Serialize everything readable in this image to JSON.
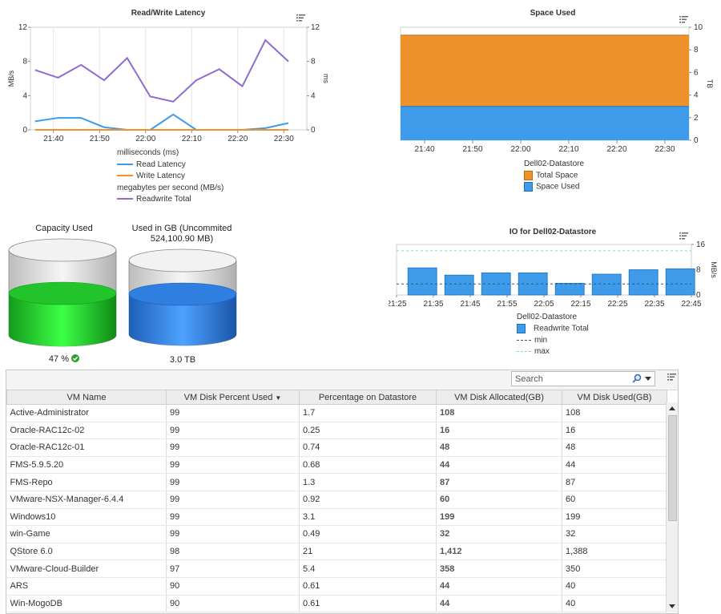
{
  "charts": {
    "rw_latency": {
      "title": "Read/Write Latency",
      "left_axis_label": "MB/s",
      "right_axis_label": "ms",
      "y_ticks": [
        "12",
        "8",
        "4",
        "0"
      ],
      "x_ticks": [
        "21:40",
        "21:50",
        "22:00",
        "22:10",
        "22:20",
        "22:30"
      ],
      "legend": {
        "group1": "milliseconds (ms)",
        "read": "Read Latency",
        "write": "Write Latency",
        "group2": "megabytes per second (MB/s)",
        "total": "Readwrite Total"
      }
    },
    "space_used": {
      "title": "Space Used",
      "right_axis_label": "TB",
      "y_ticks": [
        "10",
        "8",
        "6",
        "4",
        "2",
        "0"
      ],
      "x_ticks": [
        "21:40",
        "21:50",
        "22:00",
        "22:10",
        "22:20",
        "22:30"
      ],
      "legend": {
        "header": "Dell02-Datastore",
        "total": "Total Space",
        "used": "Space Used"
      }
    },
    "io": {
      "title": "IO for Dell02-Datastore",
      "right_axis_label": "MB/s",
      "y_ticks": [
        "16",
        "8",
        "0"
      ],
      "x_ticks": [
        "21:25",
        "21:35",
        "21:45",
        "21:55",
        "22:05",
        "22:15",
        "22:25",
        "22:35",
        "22:45"
      ],
      "legend": {
        "header": "Dell02-Datastore",
        "total": "Readwrite Total",
        "min": "min",
        "max": "max"
      }
    }
  },
  "chart_data": [
    {
      "type": "line",
      "title": "Read/Write Latency",
      "ylabel": "MB/s",
      "y2label": "ms",
      "ylim": [
        0,
        12
      ],
      "x": [
        "21:36",
        "21:41",
        "21:46",
        "21:51",
        "21:56",
        "22:01",
        "22:06",
        "22:11",
        "22:16",
        "22:21",
        "22:26",
        "22:31"
      ],
      "series": [
        {
          "name": "Read Latency",
          "values": [
            1.0,
            1.4,
            1.4,
            0.3,
            0.0,
            0.0,
            1.8,
            0.0,
            0.0,
            0.0,
            0.2,
            0.8
          ],
          "color": "#3d9be9"
        },
        {
          "name": "Write Latency",
          "values": [
            0,
            0,
            0,
            0,
            0,
            0,
            0,
            0,
            0,
            0,
            0,
            0
          ],
          "color": "#f0922b"
        },
        {
          "name": "Readwrite Total",
          "values": [
            7.0,
            6.1,
            7.6,
            5.8,
            8.4,
            3.9,
            3.3,
            5.8,
            7.1,
            5.1,
            10.5,
            8.0
          ],
          "color": "#8f6bd1"
        }
      ]
    },
    {
      "type": "area",
      "title": "Space Used",
      "ylabel": "TB",
      "ylim": [
        0,
        10
      ],
      "x_range": [
        "21:35",
        "22:35"
      ],
      "series": [
        {
          "name": "Total Space",
          "value": 9.3,
          "color": "#f0922b"
        },
        {
          "name": "Space Used",
          "value": 3.0,
          "color": "#3d9be9"
        }
      ]
    },
    {
      "type": "bar",
      "title": "IO for Dell02-Datastore",
      "ylabel": "MB/s",
      "ylim": [
        0,
        16
      ],
      "categories": [
        "21:27",
        "21:37",
        "21:47",
        "21:57",
        "22:07",
        "22:17",
        "22:27",
        "22:37"
      ],
      "series": [
        {
          "name": "Readwrite Total",
          "values": [
            8.6,
            6.3,
            7.0,
            7.0,
            3.7,
            6.6,
            8.0,
            8.3
          ],
          "color": "#3d9be9"
        }
      ],
      "reference_lines": {
        "min": 3.5,
        "max": 14.0
      }
    }
  ],
  "capacity": {
    "capacity_title": "Capacity Used",
    "capacity_value": "47 %",
    "capacity_percent": 47,
    "used_title_line1": "Used in GB (Uncommited",
    "used_title_line2": "524,100.90 MB)",
    "used_value": "3.0 TB",
    "colors": {
      "capacity": "#21c42a",
      "used": "#2f7fe0"
    }
  },
  "grid": {
    "search_placeholder": "Search",
    "columns": [
      "VM Name",
      "VM Disk Percent Used",
      "Percentage on Datastore",
      "VM Disk Allocated(GB)",
      "VM Disk Used(GB)"
    ],
    "sort_indicator": "▼",
    "rows": [
      [
        "Active-Administrator",
        "99",
        "1.7",
        "108",
        "108"
      ],
      [
        "Oracle-RAC12c-02",
        "99",
        "0.25",
        "16",
        "16"
      ],
      [
        "Oracle-RAC12c-01",
        "99",
        "0.74",
        "48",
        "48"
      ],
      [
        "FMS-5.9.5.20",
        "99",
        "0.68",
        "44",
        "44"
      ],
      [
        "FMS-Repo",
        "99",
        "1.3",
        "87",
        "87"
      ],
      [
        "VMware-NSX-Manager-6.4.4",
        "99",
        "0.92",
        "60",
        "60"
      ],
      [
        "Windows10",
        "99",
        "3.1",
        "199",
        "199"
      ],
      [
        "win-Game",
        "99",
        "0.49",
        "32",
        "32"
      ],
      [
        "QStore 6.0",
        "98",
        "21",
        "1,412",
        "1,388"
      ],
      [
        "VMware-Cloud-Builder",
        "97",
        "5.4",
        "358",
        "350"
      ],
      [
        "ARS",
        "90",
        "0.61",
        "44",
        "40"
      ],
      [
        "Win-MogoDB",
        "90",
        "0.61",
        "44",
        "40"
      ]
    ]
  }
}
